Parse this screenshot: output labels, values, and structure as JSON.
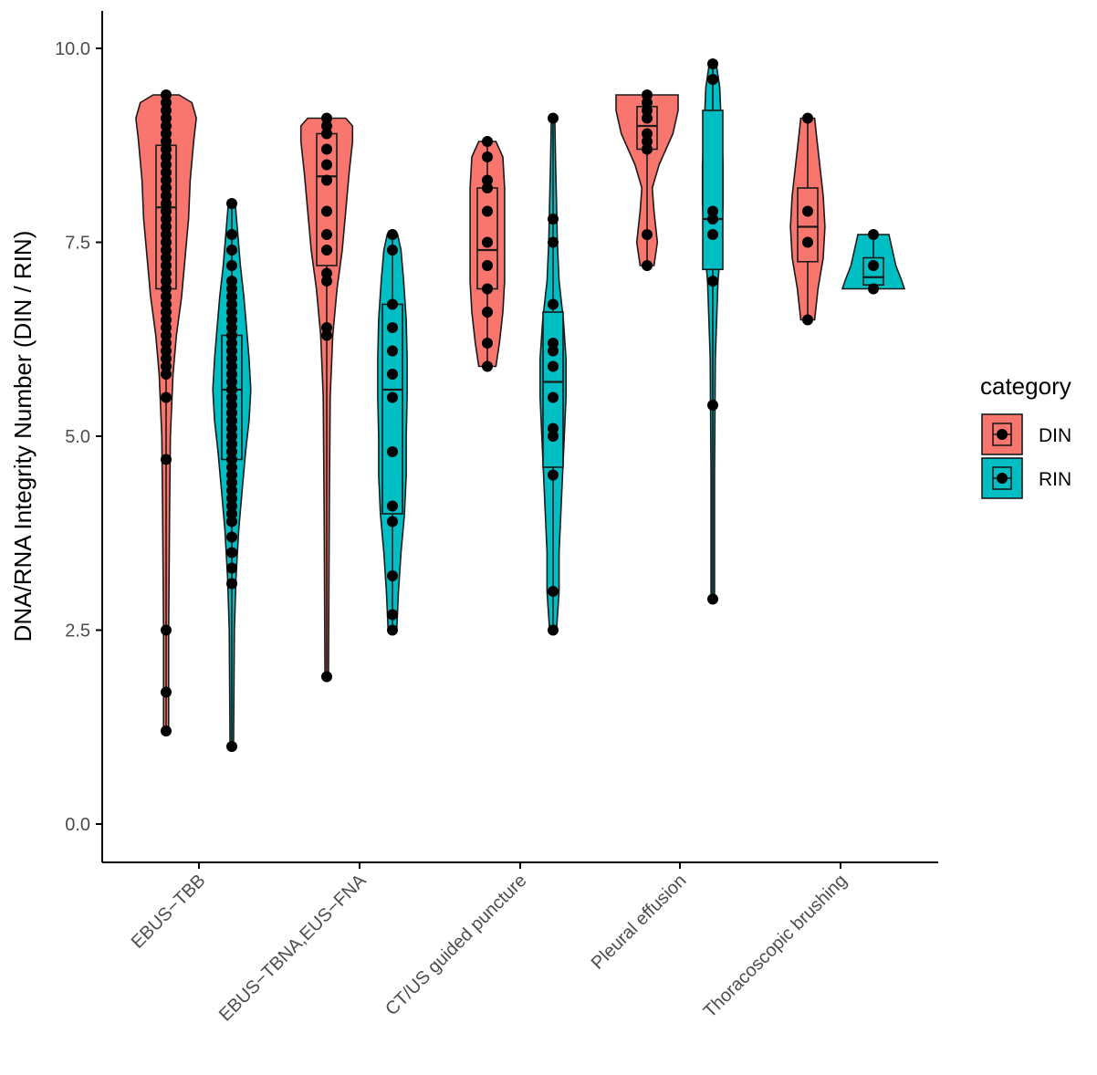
{
  "chart_data": {
    "type": "violin",
    "title": "",
    "xlabel": "",
    "ylabel": "DNA/RNA Integrity Number (DIN / RIN)",
    "ylim": [
      -0.45,
      10.5
    ],
    "yticks": [
      0.0,
      2.5,
      5.0,
      7.5,
      10.0
    ],
    "ytick_labels": [
      "0.0",
      "2.5",
      "5.0",
      "7.5",
      "10.0"
    ],
    "categories": [
      "EBUS−TBB",
      "EBUS−TBNA,EUS−FNA",
      "CT/US guided puncture",
      "Pleural effusion",
      "Thoracoscopic brushing"
    ],
    "legend": {
      "title": "category",
      "entries": [
        "DIN",
        "RIN"
      ],
      "position": "right"
    },
    "colors": {
      "DIN": "#F8766D",
      "RIN": "#00BFC4",
      "line": "#1a1a1a",
      "point": "#000000",
      "axis": "#000000"
    },
    "series": [
      {
        "name": "DIN",
        "groups": [
          {
            "category": "EBUS−TBB",
            "min": 1.2,
            "q1": 6.9,
            "median": 7.95,
            "q3": 8.75,
            "max": 9.4,
            "violin": [
              [
                1.2,
                0.03
              ],
              [
                2.5,
                0.03
              ],
              [
                4.0,
                0.04
              ],
              [
                5.0,
                0.05
              ],
              [
                5.8,
                0.08
              ],
              [
                6.3,
                0.12
              ],
              [
                6.8,
                0.18
              ],
              [
                7.3,
                0.22
              ],
              [
                7.8,
                0.26
              ],
              [
                8.3,
                0.28
              ],
              [
                8.8,
                0.32
              ],
              [
                9.1,
                0.35
              ],
              [
                9.3,
                0.3
              ],
              [
                9.4,
                0.15
              ]
            ],
            "points": [
              1.2,
              1.7,
              2.5,
              4.7,
              5.5,
              5.8,
              5.9,
              6.0,
              6.1,
              6.2,
              6.3,
              6.4,
              6.5,
              6.6,
              6.7,
              6.8,
              6.9,
              7.0,
              7.1,
              7.2,
              7.3,
              7.4,
              7.5,
              7.6,
              7.7,
              7.8,
              7.9,
              8.0,
              8.1,
              8.2,
              8.3,
              8.4,
              8.5,
              8.6,
              8.7,
              8.8,
              8.9,
              9.0,
              9.1,
              9.2,
              9.3,
              9.4
            ]
          },
          {
            "category": "EBUS−TBNA,EUS−FNA",
            "min": 1.9,
            "q1": 7.2,
            "median": 8.35,
            "q3": 8.9,
            "max": 9.1,
            "violin": [
              [
                1.9,
                0.02
              ],
              [
                4.0,
                0.03
              ],
              [
                5.5,
                0.04
              ],
              [
                6.3,
                0.07
              ],
              [
                6.9,
                0.12
              ],
              [
                7.4,
                0.18
              ],
              [
                7.9,
                0.22
              ],
              [
                8.4,
                0.26
              ],
              [
                8.8,
                0.3
              ],
              [
                9.0,
                0.3
              ],
              [
                9.1,
                0.22
              ]
            ],
            "points": [
              1.9,
              6.3,
              6.4,
              7.0,
              7.1,
              7.4,
              7.6,
              7.9,
              8.3,
              8.5,
              8.7,
              8.9,
              9.0,
              9.1
            ]
          },
          {
            "category": "CT/US guided puncture",
            "min": 5.9,
            "q1": 6.9,
            "median": 7.4,
            "q3": 8.2,
            "max": 8.8,
            "violin": [
              [
                5.9,
                0.1
              ],
              [
                6.2,
                0.14
              ],
              [
                6.6,
                0.18
              ],
              [
                7.0,
                0.2
              ],
              [
                7.4,
                0.2
              ],
              [
                7.8,
                0.2
              ],
              [
                8.2,
                0.2
              ],
              [
                8.6,
                0.18
              ],
              [
                8.8,
                0.1
              ]
            ],
            "points": [
              5.9,
              6.2,
              6.6,
              6.9,
              7.2,
              7.5,
              7.9,
              8.2,
              8.3,
              8.6,
              8.8
            ]
          },
          {
            "category": "Pleural effusion",
            "min": 7.2,
            "q1": 8.7,
            "median": 9.0,
            "q3": 9.25,
            "max": 9.4,
            "violin": [
              [
                7.2,
                0.08
              ],
              [
                7.5,
                0.12
              ],
              [
                7.9,
                0.08
              ],
              [
                8.2,
                0.06
              ],
              [
                8.5,
                0.14
              ],
              [
                8.9,
                0.3
              ],
              [
                9.2,
                0.36
              ],
              [
                9.4,
                0.36
              ]
            ],
            "points": [
              7.2,
              7.6,
              8.7,
              8.8,
              8.9,
              9.1,
              9.2,
              9.3,
              9.4
            ]
          },
          {
            "category": "Thoracoscopic brushing",
            "min": 6.5,
            "q1": 7.25,
            "median": 7.7,
            "q3": 8.2,
            "max": 9.1,
            "violin": [
              [
                6.5,
                0.08
              ],
              [
                6.9,
                0.12
              ],
              [
                7.3,
                0.18
              ],
              [
                7.7,
                0.2
              ],
              [
                8.1,
                0.18
              ],
              [
                8.5,
                0.14
              ],
              [
                8.9,
                0.1
              ],
              [
                9.1,
                0.08
              ]
            ],
            "points": [
              6.5,
              7.5,
              7.9,
              9.1
            ]
          }
        ]
      },
      {
        "name": "RIN",
        "groups": [
          {
            "category": "EBUS−TBB",
            "min": 1.0,
            "q1": 4.7,
            "median": 5.6,
            "q3": 6.3,
            "max": 8.0,
            "violin": [
              [
                1.0,
                0.02
              ],
              [
                2.5,
                0.03
              ],
              [
                3.2,
                0.05
              ],
              [
                3.8,
                0.08
              ],
              [
                4.3,
                0.12
              ],
              [
                4.8,
                0.16
              ],
              [
                5.2,
                0.2
              ],
              [
                5.6,
                0.22
              ],
              [
                6.0,
                0.2
              ],
              [
                6.4,
                0.17
              ],
              [
                6.8,
                0.14
              ],
              [
                7.2,
                0.1
              ],
              [
                7.6,
                0.07
              ],
              [
                8.0,
                0.04
              ]
            ],
            "points": [
              1.0,
              3.1,
              3.3,
              3.5,
              3.7,
              3.9,
              4.0,
              4.1,
              4.2,
              4.3,
              4.4,
              4.5,
              4.6,
              4.7,
              4.8,
              4.9,
              5.0,
              5.1,
              5.2,
              5.3,
              5.4,
              5.5,
              5.6,
              5.7,
              5.8,
              5.9,
              6.0,
              6.1,
              6.2,
              6.3,
              6.4,
              6.5,
              6.6,
              6.7,
              6.8,
              6.9,
              7.0,
              7.2,
              7.4,
              7.6,
              8.0
            ]
          },
          {
            "category": "EBUS−TBNA,EUS−FNA",
            "min": 2.5,
            "q1": 4.0,
            "median": 5.6,
            "q3": 6.7,
            "max": 7.6,
            "violin": [
              [
                2.5,
                0.05
              ],
              [
                3.0,
                0.07
              ],
              [
                3.5,
                0.1
              ],
              [
                4.0,
                0.14
              ],
              [
                4.5,
                0.16
              ],
              [
                5.0,
                0.16
              ],
              [
                5.5,
                0.17
              ],
              [
                6.0,
                0.17
              ],
              [
                6.5,
                0.16
              ],
              [
                7.0,
                0.13
              ],
              [
                7.4,
                0.1
              ],
              [
                7.6,
                0.06
              ]
            ],
            "points": [
              2.5,
              2.7,
              3.2,
              3.9,
              4.1,
              4.8,
              5.5,
              5.8,
              6.1,
              6.4,
              6.7,
              7.4,
              7.6
            ]
          },
          {
            "category": "CT/US guided puncture",
            "min": 2.5,
            "q1": 4.6,
            "median": 5.7,
            "q3": 6.6,
            "max": 9.1,
            "violin": [
              [
                2.5,
                0.04
              ],
              [
                3.0,
                0.07
              ],
              [
                3.5,
                0.07
              ],
              [
                4.0,
                0.09
              ],
              [
                4.5,
                0.11
              ],
              [
                5.0,
                0.13
              ],
              [
                5.5,
                0.15
              ],
              [
                6.0,
                0.15
              ],
              [
                6.5,
                0.12
              ],
              [
                7.0,
                0.07
              ],
              [
                7.5,
                0.05
              ],
              [
                8.0,
                0.04
              ],
              [
                8.5,
                0.03
              ],
              [
                9.1,
                0.02
              ]
            ],
            "points": [
              2.5,
              3.0,
              4.5,
              5.0,
              5.1,
              5.5,
              5.9,
              6.1,
              6.2,
              6.7,
              7.5,
              7.8,
              9.1
            ]
          },
          {
            "category": "Pleural effusion",
            "min": 2.9,
            "q1": 7.15,
            "median": 7.8,
            "q3": 9.2,
            "max": 9.8,
            "violin": [
              [
                2.9,
                0.02
              ],
              [
                4.5,
                0.02
              ],
              [
                6.0,
                0.03
              ],
              [
                7.0,
                0.06
              ],
              [
                7.5,
                0.1
              ],
              [
                8.0,
                0.12
              ],
              [
                8.5,
                0.12
              ],
              [
                9.0,
                0.1
              ],
              [
                9.5,
                0.08
              ],
              [
                9.8,
                0.04
              ]
            ],
            "points": [
              2.9,
              5.4,
              7.0,
              7.6,
              7.8,
              7.9,
              9.6,
              9.8
            ]
          },
          {
            "category": "Thoracoscopic brushing",
            "min": 6.9,
            "q1": 6.95,
            "median": 7.05,
            "q3": 7.3,
            "max": 7.6,
            "violin": [
              [
                6.9,
                0.36
              ],
              [
                7.0,
                0.33
              ],
              [
                7.2,
                0.26
              ],
              [
                7.4,
                0.22
              ],
              [
                7.6,
                0.18
              ]
            ],
            "points": [
              6.9,
              7.2,
              7.6
            ]
          }
        ]
      }
    ]
  }
}
